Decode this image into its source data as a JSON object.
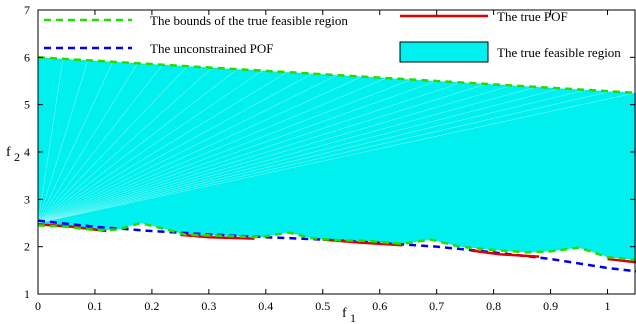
{
  "chart_data": {
    "type": "line",
    "xlabel": "f",
    "xlabel_sub": "1",
    "ylabel": "f",
    "ylabel_sub": "2",
    "xlim": [
      0,
      1.05
    ],
    "ylim": [
      1,
      7
    ],
    "xticks": [
      "0",
      "0.1",
      "0.2",
      "0.3",
      "0.4",
      "0.5",
      "0.6",
      "0.7",
      "0.8",
      "0.9",
      "1"
    ],
    "yticks": [
      "1",
      "2",
      "3",
      "4",
      "5",
      "6",
      "7"
    ],
    "grid": false,
    "legend_placement": "top",
    "series": [
      {
        "name": "The bounds of the true feasible region",
        "color": "#22dd00",
        "style": "dashed",
        "upper": [
          [
            0,
            6.0
          ],
          [
            1.05,
            5.25
          ]
        ],
        "lower": [
          [
            0,
            2.45
          ],
          [
            0.05,
            2.42
          ],
          [
            0.1,
            2.35
          ],
          [
            0.14,
            2.36
          ],
          [
            0.18,
            2.5
          ],
          [
            0.22,
            2.38
          ],
          [
            0.26,
            2.25
          ],
          [
            0.3,
            2.24
          ],
          [
            0.35,
            2.22
          ],
          [
            0.39,
            2.2
          ],
          [
            0.44,
            2.3
          ],
          [
            0.48,
            2.18
          ],
          [
            0.52,
            2.14
          ],
          [
            0.58,
            2.12
          ],
          [
            0.64,
            2.06
          ],
          [
            0.69,
            2.15
          ],
          [
            0.74,
            2.0
          ],
          [
            0.8,
            1.93
          ],
          [
            0.86,
            1.88
          ],
          [
            0.9,
            1.9
          ],
          [
            0.95,
            1.98
          ],
          [
            1.0,
            1.78
          ],
          [
            1.05,
            1.72
          ]
        ]
      },
      {
        "name": "The true POF",
        "color": "#dd0000",
        "style": "solid",
        "segments": [
          [
            [
              0,
              2.47
            ],
            [
              0.06,
              2.42
            ],
            [
              0.12,
              2.33
            ]
          ],
          [
            [
              0.25,
              2.25
            ],
            [
              0.3,
              2.2
            ],
            [
              0.38,
              2.17
            ]
          ],
          [
            [
              0.5,
              2.15
            ],
            [
              0.56,
              2.09
            ],
            [
              0.64,
              2.03
            ]
          ],
          [
            [
              0.76,
              1.92
            ],
            [
              0.81,
              1.84
            ],
            [
              0.88,
              1.79
            ]
          ],
          [
            [
              1.0,
              1.74
            ],
            [
              1.05,
              1.67
            ]
          ]
        ]
      },
      {
        "name": "The unconstrained POF",
        "color": "#0000ee",
        "style": "dashed",
        "points": [
          [
            0,
            2.55
          ],
          [
            0.1,
            2.42
          ],
          [
            0.2,
            2.33
          ],
          [
            0.3,
            2.26
          ],
          [
            0.4,
            2.2
          ],
          [
            0.5,
            2.15
          ],
          [
            0.6,
            2.08
          ],
          [
            0.7,
            2.0
          ],
          [
            0.8,
            1.88
          ],
          [
            0.9,
            1.74
          ],
          [
            1.0,
            1.55
          ],
          [
            1.05,
            1.48
          ]
        ]
      },
      {
        "name": "The true feasible region",
        "color": "#00f0f0",
        "style": "fill"
      }
    ]
  }
}
